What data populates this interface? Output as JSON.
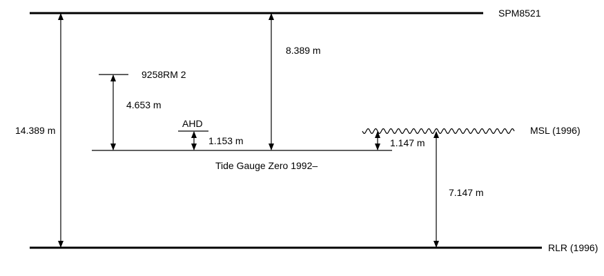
{
  "labels": {
    "spm8521": "SPM8521",
    "rlr_1996": "RLR (1996)",
    "msl_1996": "MSL (1996)",
    "bm_9258rm2": "9258RM 2",
    "ahd": "AHD",
    "tide_gauge_zero": "Tide Gauge Zero 1992–"
  },
  "measurements": {
    "spm_to_rlr": "14.389 m",
    "spm_to_tgz": "8.389 m",
    "bm_to_tgz": "4.653 m",
    "ahd_to_tgz": "1.153 m",
    "msl_to_tgz": "1.147 m",
    "msl_to_rlr": "7.147 m"
  }
}
